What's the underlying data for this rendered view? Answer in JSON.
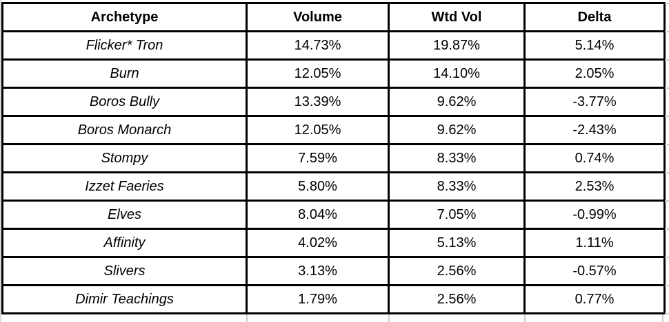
{
  "table": {
    "columns": [
      "Archetype",
      "Volume",
      "Wtd Vol",
      "Delta"
    ],
    "rows": [
      {
        "archetype": "Flicker* Tron",
        "volume": "14.73%",
        "wtd_vol": "19.87%",
        "delta": "5.14%"
      },
      {
        "archetype": "Burn",
        "volume": "12.05%",
        "wtd_vol": "14.10%",
        "delta": "2.05%"
      },
      {
        "archetype": "Boros Bully",
        "volume": "13.39%",
        "wtd_vol": "9.62%",
        "delta": "-3.77%"
      },
      {
        "archetype": "Boros Monarch",
        "volume": "12.05%",
        "wtd_vol": "9.62%",
        "delta": "-2.43%"
      },
      {
        "archetype": "Stompy",
        "volume": "7.59%",
        "wtd_vol": "8.33%",
        "delta": "0.74%"
      },
      {
        "archetype": "Izzet Faeries",
        "volume": "5.80%",
        "wtd_vol": "8.33%",
        "delta": "2.53%"
      },
      {
        "archetype": "Elves",
        "volume": "8.04%",
        "wtd_vol": "7.05%",
        "delta": "-0.99%"
      },
      {
        "archetype": "Affinity",
        "volume": "4.02%",
        "wtd_vol": "5.13%",
        "delta": "1.11%"
      },
      {
        "archetype": "Slivers",
        "volume": "3.13%",
        "wtd_vol": "2.56%",
        "delta": "-0.57%"
      },
      {
        "archetype": "Dimir Teachings",
        "volume": "1.79%",
        "wtd_vol": "2.56%",
        "delta": "0.77%"
      }
    ]
  },
  "chart_data": {
    "type": "table",
    "title": "",
    "columns": [
      "Archetype",
      "Volume",
      "Wtd Vol",
      "Delta"
    ],
    "units": "percent",
    "rows": [
      [
        "Flicker* Tron",
        14.73,
        19.87,
        5.14
      ],
      [
        "Burn",
        12.05,
        14.1,
        2.05
      ],
      [
        "Boros Bully",
        13.39,
        9.62,
        -3.77
      ],
      [
        "Boros Monarch",
        12.05,
        9.62,
        -2.43
      ],
      [
        "Stompy",
        7.59,
        8.33,
        0.74
      ],
      [
        "Izzet Faeries",
        5.8,
        8.33,
        2.53
      ],
      [
        "Elves",
        8.04,
        7.05,
        -0.99
      ],
      [
        "Affinity",
        4.02,
        5.13,
        1.11
      ],
      [
        "Slivers",
        3.13,
        2.56,
        -0.57
      ],
      [
        "Dimir Teachings",
        1.79,
        2.56,
        0.77
      ]
    ]
  },
  "colors": {
    "border": "#000000",
    "background": "#ffffff",
    "text": "#000000",
    "gridline_artifact": "#cccccc"
  }
}
